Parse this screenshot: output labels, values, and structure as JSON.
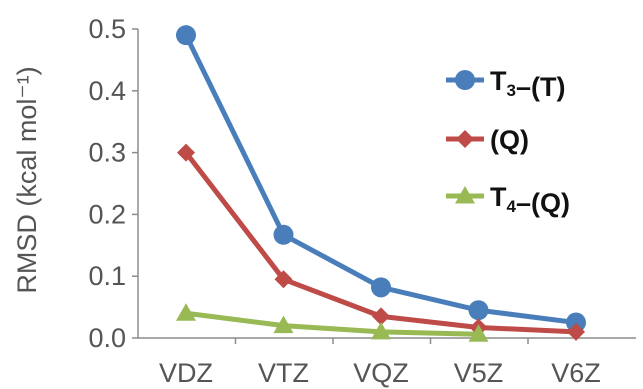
{
  "chart_data": {
    "type": "line",
    "categories": [
      "VDZ",
      "VTZ",
      "VQZ",
      "V5Z",
      "V6Z"
    ],
    "ylabel": "RMSD (kcal mol⁻¹)",
    "ylim": [
      0,
      0.5
    ],
    "yticks": [
      "0.0",
      "0.1",
      "0.2",
      "0.3",
      "0.4",
      "0.5"
    ],
    "grid": false,
    "legend_position": "right",
    "series": [
      {
        "name": "T₃–(T)",
        "color": "#4a7ebb",
        "marker": "circle",
        "values": [
          0.49,
          0.167,
          0.082,
          0.045,
          0.025
        ]
      },
      {
        "name": "(Q)",
        "color": "#be4b48",
        "marker": "diamond",
        "values": [
          0.3,
          0.095,
          0.035,
          0.017,
          0.01
        ]
      },
      {
        "name": "T₄–(Q)",
        "color": "#98b954",
        "marker": "triangle",
        "values": [
          0.04,
          0.02,
          0.01,
          0.006,
          null
        ]
      }
    ]
  }
}
